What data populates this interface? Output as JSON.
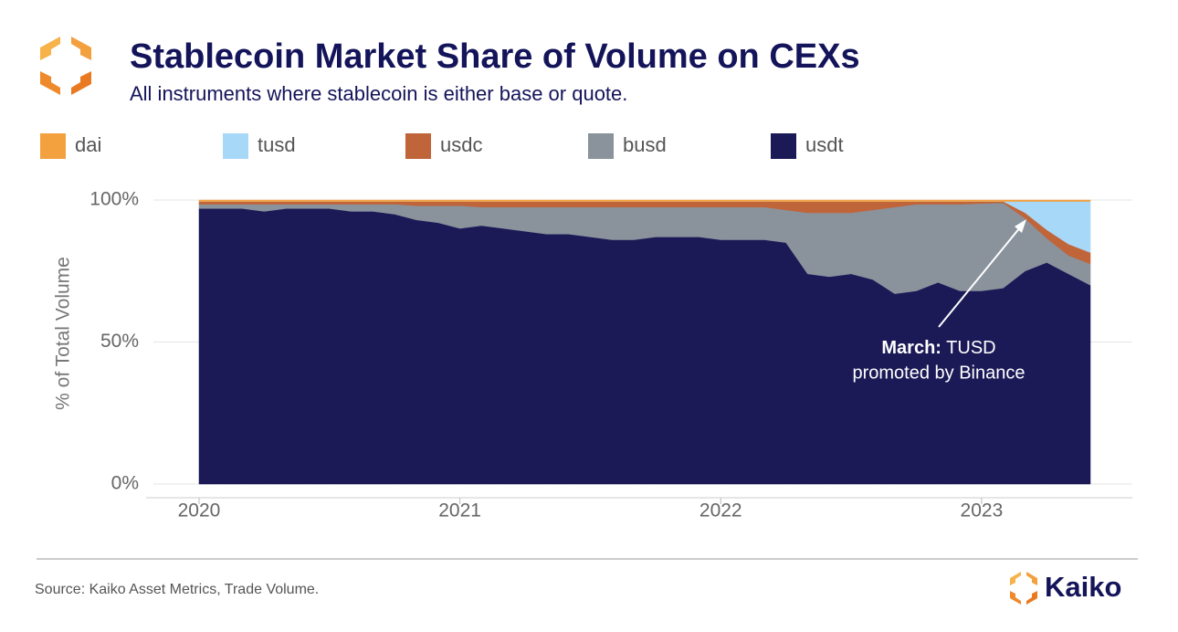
{
  "chart_data": {
    "type": "stacked-area",
    "title": "Stablecoin Market Share of Volume on CEXs",
    "subtitle": "All instruments where stablecoin is either base or quote.",
    "ylabel": "% of Total Volume",
    "source": "Source: Kaiko Asset Metrics, Trade Volume.",
    "brand": "Kaiko",
    "annotation": {
      "bold": "March:",
      "text": "TUSD",
      "line2": "promoted by Binance"
    },
    "x": [
      2020,
      2020.083,
      2020.167,
      2020.25,
      2020.333,
      2020.417,
      2020.5,
      2020.583,
      2020.667,
      2020.75,
      2020.833,
      2020.917,
      2021,
      2021.083,
      2021.167,
      2021.25,
      2021.333,
      2021.417,
      2021.5,
      2021.583,
      2021.667,
      2021.75,
      2021.833,
      2021.917,
      2022,
      2022.083,
      2022.167,
      2022.25,
      2022.333,
      2022.417,
      2022.5,
      2022.583,
      2022.667,
      2022.75,
      2022.833,
      2022.917,
      2023,
      2023.083,
      2023.167,
      2023.25,
      2023.333,
      2023.417
    ],
    "series": [
      {
        "name": "usdt",
        "color": "#1b1a57",
        "values": [
          97,
          97,
          97,
          96,
          97,
          97,
          97,
          96,
          96,
          95,
          93,
          92,
          90,
          91,
          90,
          89,
          88,
          88,
          87,
          86,
          86,
          87,
          87,
          87,
          86,
          86,
          86,
          85,
          74,
          73,
          74,
          72,
          67,
          68,
          71,
          68,
          68,
          69,
          75,
          78,
          74,
          70
        ]
      },
      {
        "name": "busd",
        "color": "#8a929c",
        "values": [
          1.5,
          1.5,
          1.5,
          2.5,
          1.5,
          1.5,
          1.5,
          2.5,
          2.5,
          3.5,
          5,
          6,
          8,
          6.5,
          7.5,
          8.5,
          9.5,
          9.5,
          10.5,
          11.5,
          11.5,
          10.5,
          10.5,
          10.5,
          11.5,
          11.5,
          11.5,
          11.5,
          21.5,
          22.5,
          21.5,
          24.5,
          30.5,
          30.5,
          27.5,
          30.5,
          30.8,
          30,
          18.5,
          8.5,
          6.5,
          7.5
        ]
      },
      {
        "name": "usdc",
        "color": "#c0643a",
        "values": [
          1,
          1,
          1,
          1,
          1,
          1,
          1,
          1,
          1,
          1,
          1.5,
          1.5,
          1.5,
          2,
          2,
          2,
          2,
          2,
          2,
          2,
          2,
          2,
          2,
          2,
          2,
          2,
          2,
          3,
          4,
          4,
          4,
          3,
          2,
          1,
          1,
          1,
          0.7,
          0.5,
          2,
          3,
          4,
          4
        ]
      },
      {
        "name": "tusd",
        "color": "#a8d8f8",
        "values": [
          0,
          0,
          0,
          0,
          0,
          0,
          0,
          0,
          0,
          0,
          0,
          0,
          0,
          0,
          0,
          0,
          0,
          0,
          0,
          0,
          0,
          0,
          0,
          0,
          0,
          0,
          0,
          0,
          0,
          0,
          0,
          0,
          0,
          0,
          0,
          0,
          0,
          0,
          4,
          10,
          15,
          18
        ]
      },
      {
        "name": "dai",
        "color": "#f3a03f",
        "values": [
          0.5,
          0.5,
          0.5,
          0.5,
          0.5,
          0.5,
          0.5,
          0.5,
          0.5,
          0.5,
          0.5,
          0.5,
          0.5,
          0.5,
          0.5,
          0.5,
          0.5,
          0.5,
          0.5,
          0.5,
          0.5,
          0.5,
          0.5,
          0.5,
          0.5,
          0.5,
          0.5,
          0.5,
          0.5,
          0.5,
          0.5,
          0.5,
          0.5,
          0.5,
          0.5,
          0.5,
          0.5,
          0.5,
          0.5,
          0.5,
          0.5,
          0.5
        ]
      }
    ],
    "xlim": [
      2019.825,
      2023.578
    ],
    "xticks": [
      2020,
      2021,
      2022,
      2023
    ],
    "ylim": [
      0,
      100
    ],
    "yticks": [
      {
        "value": 0,
        "label": "0%"
      },
      {
        "value": 50,
        "label": "50%"
      },
      {
        "value": 100,
        "label": "100%"
      }
    ],
    "grid": true
  }
}
